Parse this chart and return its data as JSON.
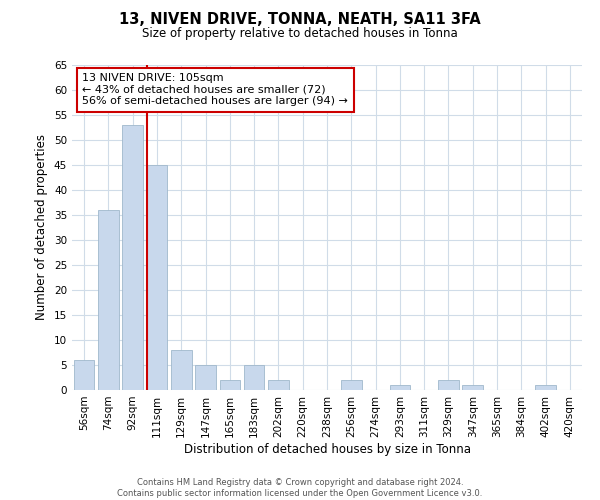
{
  "title": "13, NIVEN DRIVE, TONNA, NEATH, SA11 3FA",
  "subtitle": "Size of property relative to detached houses in Tonna",
  "xlabel": "Distribution of detached houses by size in Tonna",
  "ylabel": "Number of detached properties",
  "bar_labels": [
    "56sqm",
    "74sqm",
    "92sqm",
    "111sqm",
    "129sqm",
    "147sqm",
    "165sqm",
    "183sqm",
    "202sqm",
    "220sqm",
    "238sqm",
    "256sqm",
    "274sqm",
    "293sqm",
    "311sqm",
    "329sqm",
    "347sqm",
    "365sqm",
    "384sqm",
    "402sqm",
    "420sqm"
  ],
  "bar_values": [
    6,
    36,
    53,
    45,
    8,
    5,
    2,
    5,
    2,
    0,
    0,
    2,
    0,
    1,
    0,
    2,
    1,
    0,
    0,
    1,
    0
  ],
  "bar_color": "#c8d8ec",
  "bar_edge_color": "#a0b8cc",
  "annotation_title": "13 NIVEN DRIVE: 105sqm",
  "annotation_line1": "← 43% of detached houses are smaller (72)",
  "annotation_line2": "56% of semi-detached houses are larger (94) →",
  "annotation_box_color": "#ffffff",
  "annotation_box_edge": "#cc0000",
  "vline_color": "#cc0000",
  "ylim": [
    0,
    65
  ],
  "yticks": [
    0,
    5,
    10,
    15,
    20,
    25,
    30,
    35,
    40,
    45,
    50,
    55,
    60,
    65
  ],
  "footer1": "Contains HM Land Registry data © Crown copyright and database right 2024.",
  "footer2": "Contains public sector information licensed under the Open Government Licence v3.0.",
  "bg_color": "#ffffff",
  "grid_color": "#d0dce8"
}
